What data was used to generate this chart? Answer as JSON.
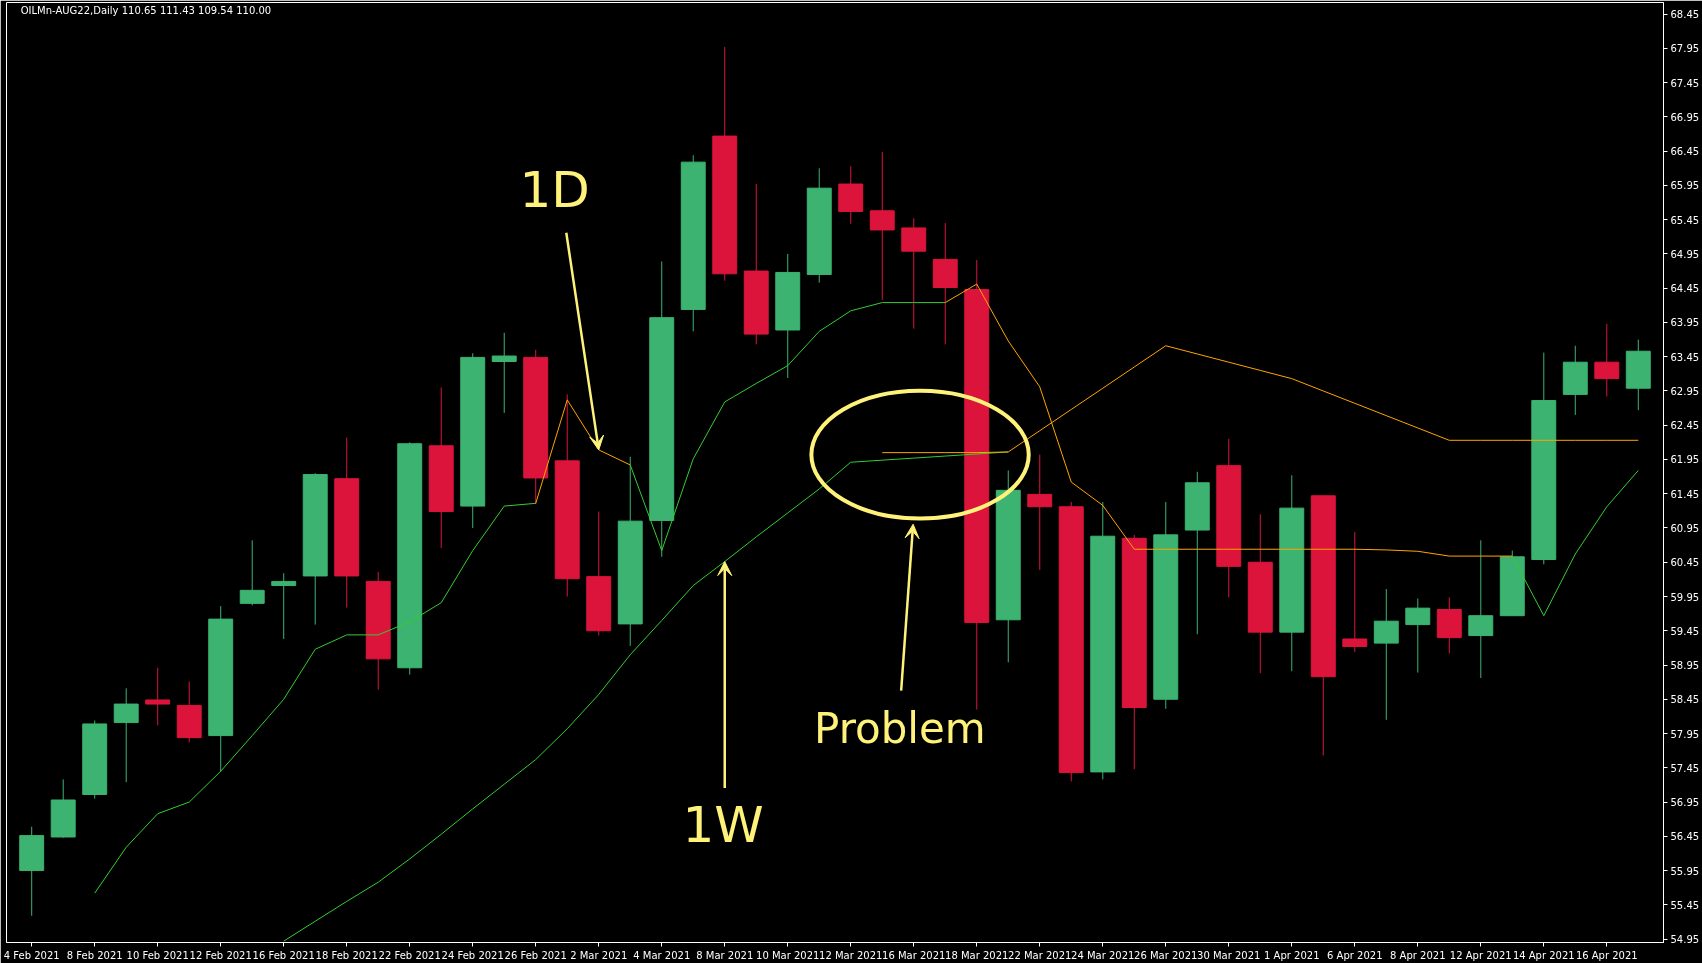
{
  "chart_data": {
    "type": "candlestick",
    "title": "OILMn-AUG22,Daily 110.65 111.43 109.54 110.00",
    "categories": [
      "4 Feb 2021",
      null,
      "8 Feb 2021",
      null,
      "10 Feb 2021",
      null,
      "12 Feb 2021",
      null,
      "16 Feb 2021",
      null,
      "18 Feb 2021",
      null,
      "22 Feb 2021",
      null,
      "24 Feb 2021",
      null,
      "26 Feb 2021",
      null,
      "2 Mar 2021",
      null,
      "4 Mar 2021",
      null,
      "8 Mar 2021",
      null,
      "10 Mar 2021",
      null,
      "12 Mar 2021",
      null,
      "16 Mar 2021",
      null,
      "18 Mar 2021",
      null,
      "22 Mar 2021",
      null,
      "24 Mar 2021",
      null,
      "26 Mar 2021",
      null,
      "30 Mar 2021",
      null,
      "1 Apr 2021",
      null,
      "6 Apr 2021",
      null,
      "8 Apr 2021",
      null,
      "12 Apr 2021",
      null,
      "14 Apr 2021",
      null,
      "16 Apr 2021",
      null
    ],
    "ohlc": [
      [
        55.95,
        56.59,
        55.29,
        56.46
      ],
      [
        56.44,
        57.28,
        56.43,
        56.98
      ],
      [
        57.06,
        58.14,
        57.0,
        58.09
      ],
      [
        58.11,
        58.61,
        57.24,
        58.38
      ],
      [
        58.44,
        58.91,
        58.07,
        58.38
      ],
      [
        58.36,
        58.71,
        57.82,
        57.89
      ],
      [
        57.92,
        59.81,
        57.39,
        59.62
      ],
      [
        59.85,
        60.77,
        59.82,
        60.04
      ],
      [
        60.11,
        60.29,
        59.33,
        60.17
      ],
      [
        60.25,
        61.75,
        59.54,
        61.73
      ],
      [
        61.67,
        62.27,
        59.79,
        60.25
      ],
      [
        60.17,
        60.31,
        58.59,
        59.04
      ],
      [
        58.91,
        62.2,
        58.81,
        62.18
      ],
      [
        62.15,
        63.0,
        60.66,
        61.19
      ],
      [
        61.27,
        63.5,
        60.95,
        63.44
      ],
      [
        63.38,
        63.8,
        62.63,
        63.46
      ],
      [
        63.44,
        63.55,
        61.3,
        61.68
      ],
      [
        61.93,
        62.9,
        59.95,
        60.21
      ],
      [
        60.24,
        61.19,
        59.38,
        59.45
      ],
      [
        59.55,
        61.99,
        59.23,
        61.05
      ],
      [
        61.06,
        64.84,
        60.53,
        64.02
      ],
      [
        64.14,
        66.39,
        63.82,
        66.29
      ],
      [
        66.67,
        67.97,
        64.56,
        64.66
      ],
      [
        64.7,
        65.97,
        63.63,
        63.78
      ],
      [
        63.84,
        64.95,
        63.14,
        64.68
      ],
      [
        64.65,
        66.2,
        64.53,
        65.91
      ],
      [
        65.97,
        66.23,
        65.39,
        65.57
      ],
      [
        65.58,
        66.44,
        64.28,
        65.3
      ],
      [
        65.33,
        65.47,
        63.86,
        64.99
      ],
      [
        64.87,
        65.4,
        63.63,
        64.46
      ],
      [
        64.43,
        64.86,
        58.3,
        59.57
      ],
      [
        59.61,
        61.79,
        58.99,
        61.5
      ],
      [
        61.44,
        62.02,
        60.34,
        61.26
      ],
      [
        61.26,
        61.33,
        57.25,
        57.38
      ],
      [
        57.39,
        61.33,
        57.28,
        60.83
      ],
      [
        60.8,
        60.85,
        57.43,
        58.33
      ],
      [
        58.45,
        61.33,
        58.31,
        60.85
      ],
      [
        60.92,
        61.77,
        59.4,
        61.61
      ],
      [
        61.86,
        62.25,
        59.94,
        60.39
      ],
      [
        60.45,
        61.15,
        58.83,
        59.43
      ],
      [
        59.43,
        61.72,
        58.86,
        61.24
      ],
      [
        61.42,
        61.42,
        57.63,
        58.78
      ],
      [
        59.33,
        60.89,
        59.14,
        59.22
      ],
      [
        59.27,
        60.06,
        58.15,
        59.59
      ],
      [
        59.54,
        59.92,
        58.84,
        59.78
      ],
      [
        59.76,
        59.94,
        59.12,
        59.35
      ],
      [
        59.38,
        60.77,
        58.76,
        59.67
      ],
      [
        59.67,
        60.62,
        59.67,
        60.53
      ],
      [
        60.49,
        63.51,
        60.42,
        62.81
      ],
      [
        62.9,
        63.61,
        62.6,
        63.37
      ],
      [
        63.37,
        63.93,
        62.87,
        63.13
      ],
      [
        62.99,
        63.7,
        62.67,
        63.53
      ]
    ],
    "colors": [
      "#3cb371",
      "#3cb371",
      "#3cb371",
      "#3cb371",
      "#dc143c",
      "#dc143c",
      "#3cb371",
      "#3cb371",
      "#3cb371",
      "#3cb371",
      "#dc143c",
      "#dc143c",
      "#3cb371",
      "#dc143c",
      "#3cb371",
      "#3cb371",
      "#dc143c",
      "#dc143c",
      "#dc143c",
      "#3cb371",
      "#3cb371",
      "#3cb371",
      "#dc143c",
      "#dc143c",
      "#3cb371",
      "#3cb371",
      "#dc143c",
      "#dc143c",
      "#dc143c",
      "#dc143c",
      "#dc143c",
      "#3cb371",
      "#dc143c",
      "#dc143c",
      "#3cb371",
      "#dc143c",
      "#3cb371",
      "#3cb371",
      "#dc143c",
      "#dc143c",
      "#3cb371",
      "#dc143c",
      "#dc143c",
      "#3cb371",
      "#3cb371",
      "#dc143c",
      "#3cb371",
      "#3cb371",
      "#3cb371",
      "#3cb371",
      "#dc143c",
      "#3cb371"
    ],
    "series": [
      {
        "type": "line",
        "color": "#32cd32",
        "values": [
          null,
          null,
          55.62,
          56.29,
          56.78,
          56.95,
          57.4,
          57.92,
          58.45,
          59.18,
          59.39,
          59.39,
          59.58,
          59.86,
          60.62,
          61.27,
          61.31,
          null,
          null,
          null,
          null,
          null,
          null,
          null,
          null,
          null,
          null,
          null,
          null,
          null,
          null,
          null,
          null,
          null,
          null,
          null,
          null,
          null,
          null,
          null,
          null,
          null,
          null,
          null,
          null,
          null,
          null,
          null,
          null,
          null,
          null,
          null
        ]
      },
      {
        "type": "line",
        "color": "#ffa500",
        "values": [
          null,
          null,
          null,
          null,
          null,
          null,
          null,
          null,
          null,
          null,
          null,
          null,
          null,
          null,
          null,
          null,
          61.31,
          62.82,
          62.09,
          61.87,
          null,
          null,
          null,
          null,
          null,
          null,
          null,
          null,
          null,
          null,
          null,
          null,
          null,
          null,
          null,
          null,
          null,
          null,
          null,
          null,
          null,
          null,
          null,
          null,
          null,
          null,
          null,
          null,
          null,
          null,
          null,
          null
        ]
      },
      {
        "type": "line",
        "color": "#32cd32",
        "values": [
          null,
          null,
          null,
          null,
          null,
          null,
          null,
          null,
          null,
          null,
          null,
          null,
          null,
          null,
          null,
          null,
          null,
          null,
          null,
          61.87,
          60.62,
          61.96,
          62.79,
          63.06,
          63.32,
          63.82,
          64.12,
          64.24,
          64.24,
          64.24,
          null,
          null,
          null,
          null,
          null,
          null,
          null,
          null,
          null,
          null,
          null,
          null,
          null,
          null,
          null,
          null,
          null,
          null,
          null,
          null,
          null,
          null
        ]
      },
      {
        "type": "line",
        "color": "#ffa500",
        "values": [
          null,
          null,
          null,
          null,
          null,
          null,
          null,
          null,
          null,
          null,
          null,
          null,
          null,
          null,
          null,
          null,
          null,
          null,
          null,
          null,
          null,
          null,
          null,
          null,
          null,
          null,
          null,
          null,
          null,
          64.24,
          64.51,
          63.68,
          63.01,
          61.62,
          61.28,
          60.64,
          60.64,
          60.64,
          60.64,
          60.64,
          60.64,
          60.64,
          60.64,
          60.63,
          60.61,
          60.54,
          60.54,
          60.54,
          null,
          null,
          null,
          null
        ]
      },
      {
        "type": "line",
        "color": "#32cd32",
        "values": [
          null,
          null,
          null,
          null,
          null,
          null,
          null,
          null,
          null,
          null,
          null,
          null,
          null,
          null,
          null,
          null,
          null,
          null,
          null,
          null,
          null,
          null,
          null,
          null,
          null,
          null,
          null,
          null,
          null,
          null,
          null,
          null,
          null,
          null,
          null,
          null,
          null,
          null,
          null,
          null,
          null,
          null,
          null,
          null,
          null,
          null,
          null,
          60.54,
          59.67,
          60.57,
          61.26,
          61.79
        ]
      },
      {
        "type": "line",
        "color": "#32cd32",
        "values": [
          null,
          null,
          null,
          null,
          null,
          null,
          null,
          null,
          54.92,
          55.21,
          55.5,
          55.78,
          56.12,
          56.48,
          56.85,
          57.21,
          57.57,
          58.02,
          58.52,
          59.1,
          59.6,
          60.11,
          60.46,
          60.82,
          61.17,
          61.52,
          61.91,
          61.94,
          61.97,
          62.0,
          62.03,
          62.06,
          null,
          null,
          null,
          null,
          null,
          null,
          null,
          null,
          null,
          null,
          null,
          null,
          null,
          null,
          null,
          null,
          null,
          null,
          null,
          null
        ]
      },
      {
        "type": "line",
        "color": "#ffa500",
        "values": [
          null,
          null,
          null,
          null,
          null,
          null,
          null,
          null,
          null,
          null,
          null,
          null,
          null,
          null,
          null,
          null,
          null,
          null,
          null,
          null,
          null,
          null,
          null,
          null,
          null,
          null,
          null,
          62.05,
          62.05,
          62.05,
          62.05,
          62.06,
          62.37,
          62.68,
          62.99,
          63.3,
          63.61,
          63.49,
          63.37,
          63.25,
          63.13,
          62.95,
          62.77,
          62.59,
          62.41,
          62.23,
          62.23,
          62.23,
          62.23,
          62.23,
          62.23,
          62.23
        ]
      }
    ],
    "ylim": [
      54.9,
      68.62
    ],
    "yticks": [
      54.95,
      55.45,
      55.95,
      56.45,
      56.95,
      57.45,
      57.95,
      58.45,
      58.95,
      59.45,
      59.95,
      60.45,
      60.95,
      61.45,
      61.95,
      62.45,
      62.95,
      63.45,
      63.95,
      64.45,
      64.95,
      65.45,
      65.95,
      66.45,
      66.95,
      67.45,
      67.95,
      68.45
    ],
    "annotations": [
      {
        "text": "1D",
        "x": "2 Mar 2021",
        "y": 62.09
      },
      {
        "text": "1W",
        "x": "8 Mar 2021",
        "y": 60.46
      },
      "Problem"
    ]
  }
}
